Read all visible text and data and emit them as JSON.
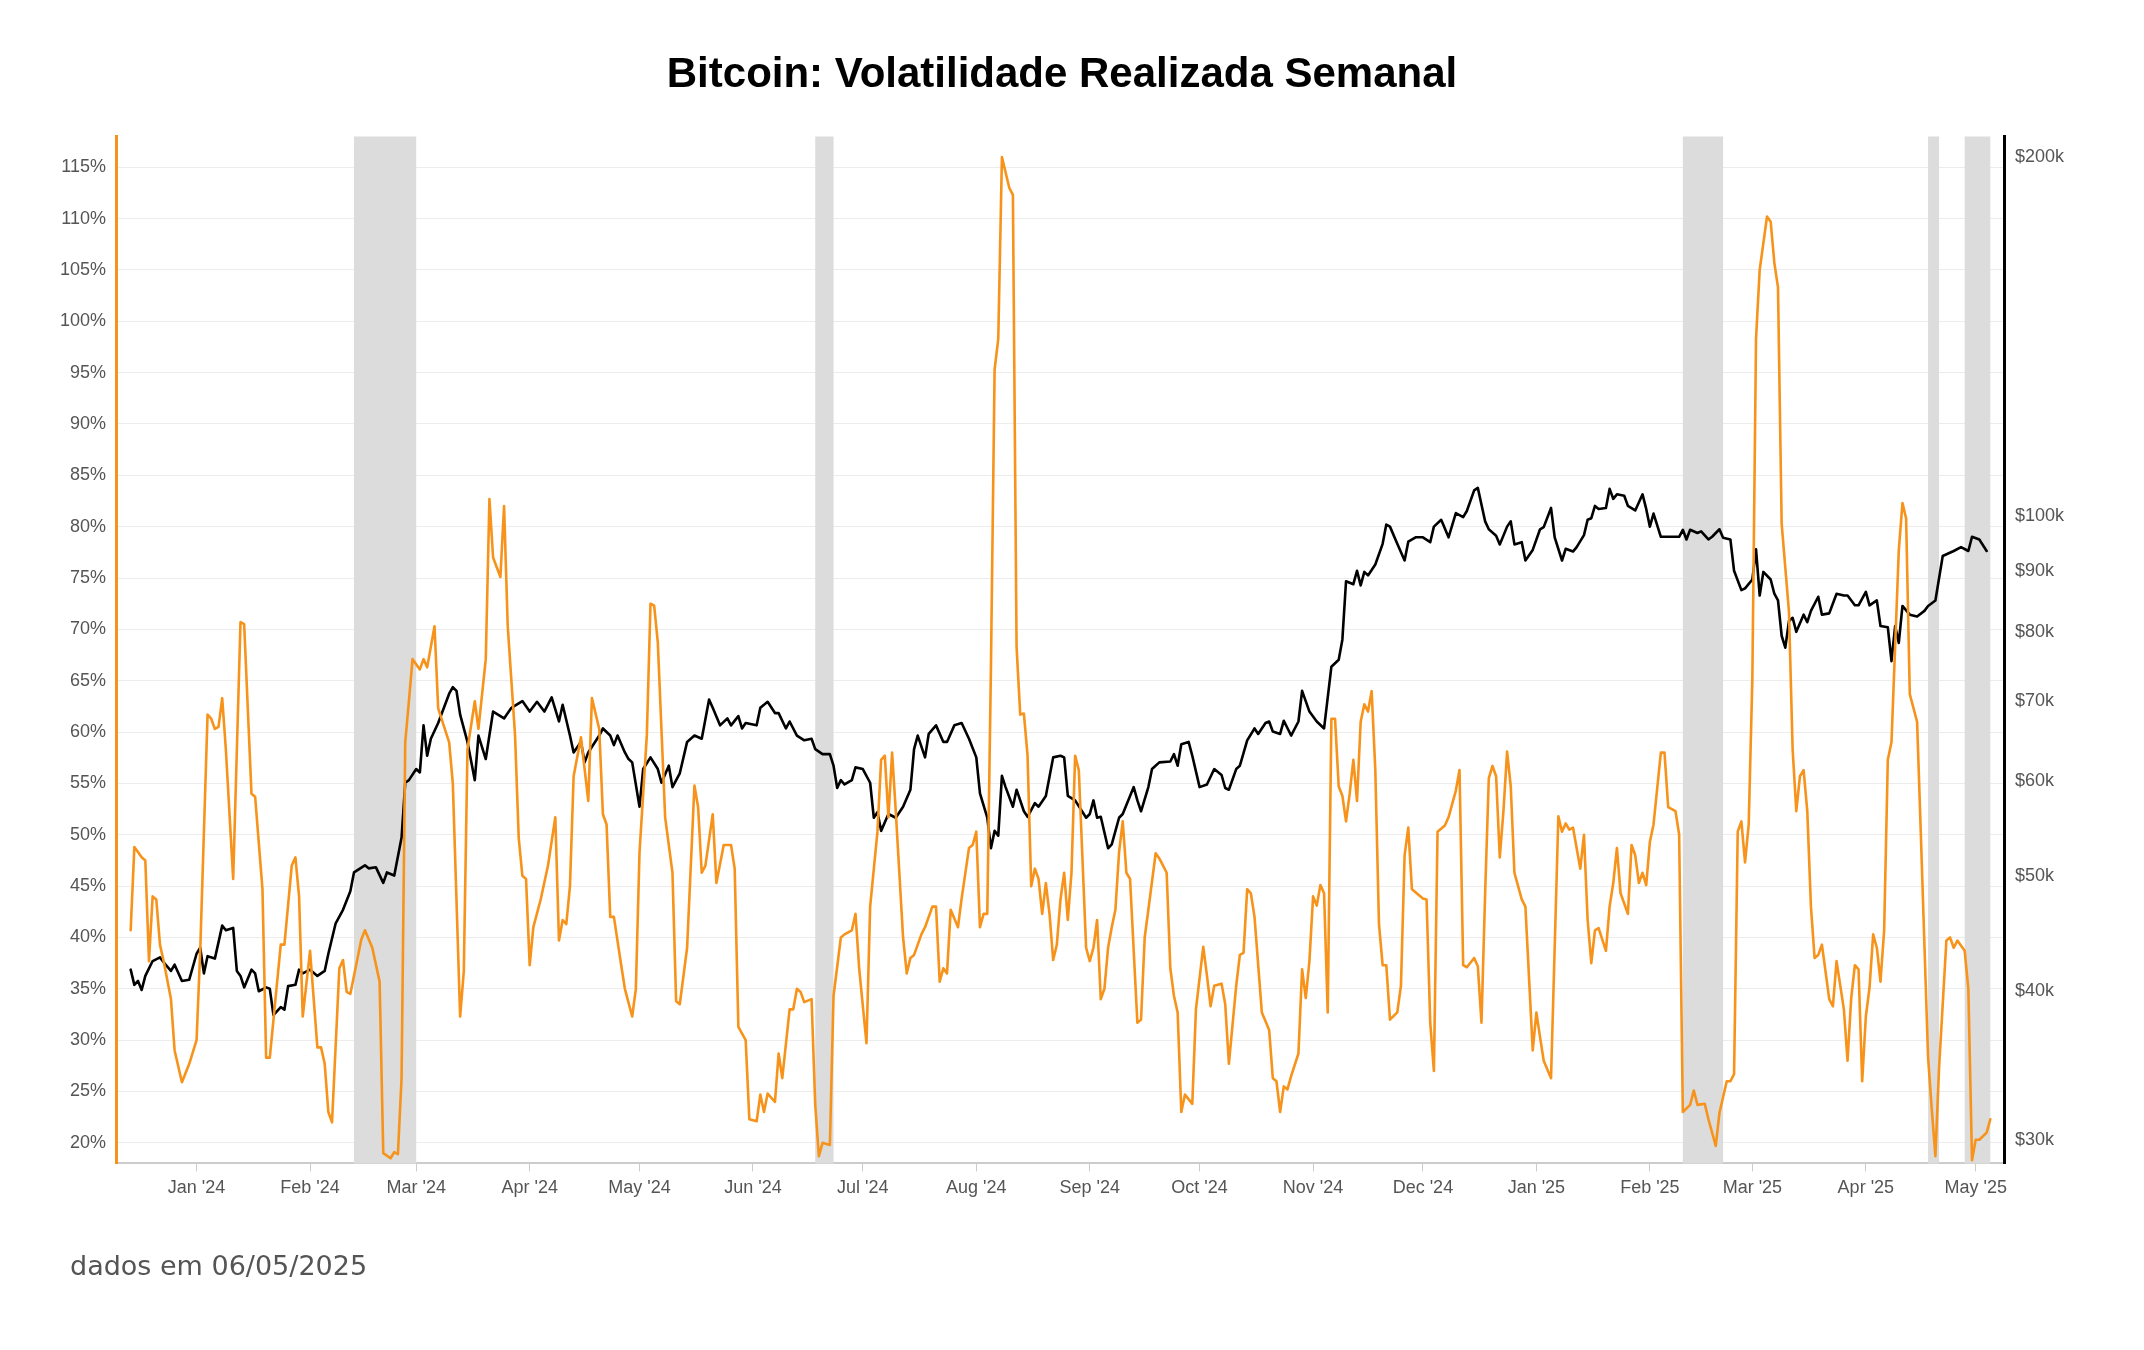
{
  "chart_data": {
    "type": "line",
    "title": "Bitcoin: Volatilidade Realizada Semanal",
    "annotations": [
      "dados em 06/05/2025"
    ],
    "xlim": [
      "2023-12-10",
      "2025-05-09"
    ],
    "xticks": [
      {
        "value": "2024-01-01",
        "label": "Jan '24"
      },
      {
        "value": "2024-02-01",
        "label": "Feb '24"
      },
      {
        "value": "2024-03-01",
        "label": "Mar '24"
      },
      {
        "value": "2024-04-01",
        "label": "Apr '24"
      },
      {
        "value": "2024-05-01",
        "label": "May '24"
      },
      {
        "value": "2024-06-01",
        "label": "Jun '24"
      },
      {
        "value": "2024-07-01",
        "label": "Jul '24"
      },
      {
        "value": "2024-08-01",
        "label": "Aug '24"
      },
      {
        "value": "2024-09-01",
        "label": "Sep '24"
      },
      {
        "value": "2024-10-01",
        "label": "Oct '24"
      },
      {
        "value": "2024-11-01",
        "label": "Nov '24"
      },
      {
        "value": "2024-12-01",
        "label": "Dec '24"
      },
      {
        "value": "2025-01-01",
        "label": "Jan '25"
      },
      {
        "value": "2025-02-01",
        "label": "Feb '25"
      },
      {
        "value": "2025-03-01",
        "label": "Mar '25"
      },
      {
        "value": "2025-04-01",
        "label": "Apr '25"
      },
      {
        "value": "2025-05-01",
        "label": "May '25"
      }
    ],
    "ylim": [
      18,
      118
    ],
    "yticks": [
      {
        "value": 20,
        "label": "20%"
      },
      {
        "value": 25,
        "label": "25%"
      },
      {
        "value": 30,
        "label": "30%"
      },
      {
        "value": 35,
        "label": "35%"
      },
      {
        "value": 40,
        "label": "40%"
      },
      {
        "value": 45,
        "label": "45%"
      },
      {
        "value": 50,
        "label": "50%"
      },
      {
        "value": 55,
        "label": "55%"
      },
      {
        "value": 60,
        "label": "60%"
      },
      {
        "value": 65,
        "label": "65%"
      },
      {
        "value": 70,
        "label": "70%"
      },
      {
        "value": 75,
        "label": "75%"
      },
      {
        "value": 80,
        "label": "80%"
      },
      {
        "value": 85,
        "label": "85%"
      },
      {
        "value": 90,
        "label": "90%"
      },
      {
        "value": 95,
        "label": "95%"
      },
      {
        "value": 100,
        "label": "100%"
      },
      {
        "value": 105,
        "label": "105%"
      },
      {
        "value": 110,
        "label": "110%"
      },
      {
        "value": 115,
        "label": "115%"
      }
    ],
    "y2lim": [
      28700,
      208000
    ],
    "y2ticks": [
      {
        "value": 30000,
        "label": "$30k"
      },
      {
        "value": 40000,
        "label": "$40k"
      },
      {
        "value": 50000,
        "label": "$50k"
      },
      {
        "value": 60000,
        "label": "$60k"
      },
      {
        "value": 70000,
        "label": "$70k"
      },
      {
        "value": 80000,
        "label": "$80k"
      },
      {
        "value": 90000,
        "label": "$90k"
      },
      {
        "value": 100000,
        "label": "$100k"
      },
      {
        "value": 200000,
        "label": "$200k"
      }
    ],
    "log": "y2",
    "grid": "y",
    "marker": "none",
    "line_style": "solid",
    "bands": [
      {
        "axis": "x",
        "from": "2024-02-13",
        "to": "2024-03-01",
        "color": "#dcdcdc"
      },
      {
        "axis": "x",
        "from": "2024-06-18",
        "to": "2024-06-23",
        "color": "#dcdcdc"
      },
      {
        "axis": "x",
        "from": "2025-02-10",
        "to": "2025-02-21",
        "color": "#dcdcdc"
      },
      {
        "axis": "x",
        "from": "2025-04-18",
        "to": "2025-04-21",
        "color": "#dcdcdc"
      },
      {
        "axis": "x",
        "from": "2025-04-28",
        "to": "2025-05-05",
        "color": "#dcdcdc"
      }
    ],
    "series": [
      {
        "color": "#f7931a",
        "x": [
          "2023-12-14",
          "2023-12-15",
          "2023-12-17",
          "2023-12-18",
          "2023-12-19",
          "2023-12-20",
          "2023-12-21",
          "2023-12-22",
          "2023-12-23",
          "2023-12-25",
          "2023-12-26",
          "2023-12-28",
          "2023-12-30",
          "2024-01-01",
          "2024-01-02",
          "2024-01-04",
          "2024-01-05",
          "2024-01-06",
          "2024-01-07",
          "2024-01-08",
          "2024-01-09",
          "2024-01-11",
          "2024-01-13",
          "2024-01-14",
          "2024-01-16",
          "2024-01-17",
          "2024-01-19",
          "2024-01-20",
          "2024-01-21",
          "2024-01-24",
          "2024-01-25",
          "2024-01-27",
          "2024-01-28",
          "2024-01-29",
          "2024-01-30",
          "2024-02-01",
          "2024-02-03",
          "2024-02-04",
          "2024-02-05",
          "2024-02-06",
          "2024-02-07",
          "2024-02-09",
          "2024-02-10",
          "2024-02-11",
          "2024-02-12",
          "2024-02-15",
          "2024-02-16",
          "2024-02-18",
          "2024-02-20",
          "2024-02-21",
          "2024-02-23",
          "2024-02-24",
          "2024-02-25",
          "2024-02-26",
          "2024-02-27",
          "2024-02-28",
          "2024-02-29",
          "2024-03-02",
          "2024-03-03",
          "2024-03-04",
          "2024-03-06",
          "2024-03-07",
          "2024-03-10",
          "2024-03-11",
          "2024-03-13",
          "2024-03-14",
          "2024-03-15",
          "2024-03-17",
          "2024-03-18",
          "2024-03-20",
          "2024-03-21",
          "2024-03-22",
          "2024-03-24",
          "2024-03-25",
          "2024-03-26",
          "2024-03-28",
          "2024-03-29",
          "2024-03-30",
          "2024-03-31",
          "2024-04-01",
          "2024-04-02",
          "2024-04-04",
          "2024-04-06",
          "2024-04-08",
          "2024-04-09",
          "2024-04-10",
          "2024-04-11",
          "2024-04-12",
          "2024-04-13",
          "2024-04-15",
          "2024-04-17",
          "2024-04-18",
          "2024-04-20",
          "2024-04-21",
          "2024-04-22",
          "2024-04-23",
          "2024-04-24",
          "2024-04-26",
          "2024-04-27",
          "2024-04-29",
          "2024-04-30",
          "2024-05-01",
          "2024-05-03",
          "2024-05-04",
          "2024-05-05",
          "2024-05-06",
          "2024-05-08",
          "2024-05-10",
          "2024-05-11",
          "2024-05-12",
          "2024-05-14",
          "2024-05-16",
          "2024-05-17",
          "2024-05-18",
          "2024-05-19",
          "2024-05-21",
          "2024-05-22",
          "2024-05-24",
          "2024-05-26",
          "2024-05-27",
          "2024-05-28",
          "2024-05-30",
          "2024-05-31",
          "2024-06-02",
          "2024-06-03",
          "2024-06-04",
          "2024-06-05",
          "2024-06-07",
          "2024-06-08",
          "2024-06-09",
          "2024-06-11",
          "2024-06-12",
          "2024-06-13",
          "2024-06-14",
          "2024-06-15",
          "2024-06-17",
          "2024-06-18",
          "2024-06-19",
          "2024-06-20",
          "2024-06-22",
          "2024-06-23",
          "2024-06-25",
          "2024-06-26",
          "2024-06-28",
          "2024-06-29",
          "2024-06-30",
          "2024-07-02",
          "2024-07-03",
          "2024-07-05",
          "2024-07-06",
          "2024-07-07",
          "2024-07-08",
          "2024-07-09",
          "2024-07-10",
          "2024-07-12",
          "2024-07-13",
          "2024-07-14",
          "2024-07-15",
          "2024-07-17",
          "2024-07-18",
          "2024-07-20",
          "2024-07-21",
          "2024-07-22",
          "2024-07-23",
          "2024-07-24",
          "2024-07-25",
          "2024-07-27",
          "2024-07-28",
          "2024-07-30",
          "2024-07-31",
          "2024-08-01",
          "2024-08-02",
          "2024-08-03",
          "2024-08-04",
          "2024-08-05",
          "2024-08-06",
          "2024-08-07",
          "2024-08-08",
          "2024-08-10",
          "2024-08-11",
          "2024-08-12",
          "2024-08-13",
          "2024-08-14",
          "2024-08-15",
          "2024-08-16",
          "2024-08-17",
          "2024-08-18",
          "2024-08-19",
          "2024-08-20",
          "2024-08-21",
          "2024-08-22",
          "2024-08-23",
          "2024-08-24",
          "2024-08-25",
          "2024-08-26",
          "2024-08-27",
          "2024-08-28",
          "2024-08-29",
          "2024-08-31",
          "2024-09-01",
          "2024-09-02",
          "2024-09-03",
          "2024-09-04",
          "2024-09-05",
          "2024-09-06",
          "2024-09-07",
          "2024-09-08",
          "2024-09-09",
          "2024-09-10",
          "2024-09-11",
          "2024-09-12",
          "2024-09-14",
          "2024-09-15",
          "2024-09-16",
          "2024-09-17",
          "2024-09-19",
          "2024-09-20",
          "2024-09-22",
          "2024-09-23",
          "2024-09-24",
          "2024-09-25",
          "2024-09-26",
          "2024-09-27",
          "2024-09-29",
          "2024-09-30",
          "2024-10-02",
          "2024-10-03",
          "2024-10-04",
          "2024-10-05",
          "2024-10-07",
          "2024-10-08",
          "2024-10-09",
          "2024-10-11",
          "2024-10-12",
          "2024-10-13",
          "2024-10-14",
          "2024-10-15",
          "2024-10-16",
          "2024-10-18",
          "2024-10-20",
          "2024-10-21",
          "2024-10-22",
          "2024-10-23",
          "2024-10-24",
          "2024-10-25",
          "2024-10-26",
          "2024-10-28",
          "2024-10-29",
          "2024-10-30",
          "2024-10-31",
          "2024-11-01",
          "2024-11-02",
          "2024-11-03",
          "2024-11-04",
          "2024-11-05",
          "2024-11-06",
          "2024-11-07",
          "2024-11-08",
          "2024-11-09",
          "2024-11-10",
          "2024-11-11",
          "2024-11-12",
          "2024-11-13",
          "2024-11-14",
          "2024-11-15",
          "2024-11-16",
          "2024-11-17",
          "2024-11-18",
          "2024-11-19",
          "2024-11-20",
          "2024-11-21",
          "2024-11-22",
          "2024-11-24",
          "2024-11-25",
          "2024-11-26",
          "2024-11-27",
          "2024-11-28",
          "2024-12-01",
          "2024-12-02",
          "2024-12-03",
          "2024-12-04",
          "2024-12-05",
          "2024-12-07",
          "2024-12-08",
          "2024-12-10",
          "2024-12-11",
          "2024-12-12",
          "2024-12-13",
          "2024-12-15",
          "2024-12-16",
          "2024-12-17",
          "2024-12-18",
          "2024-12-19",
          "2024-12-20",
          "2024-12-21",
          "2024-12-22",
          "2024-12-23",
          "2024-12-24",
          "2024-12-25",
          "2024-12-26",
          "2024-12-28",
          "2024-12-29",
          "2024-12-31",
          "2025-01-01",
          "2025-01-02",
          "2025-01-03",
          "2025-01-05",
          "2025-01-07",
          "2025-01-08",
          "2025-01-09",
          "2025-01-10",
          "2025-01-11",
          "2025-01-13",
          "2025-01-14",
          "2025-01-15",
          "2025-01-16",
          "2025-01-17",
          "2025-01-18",
          "2025-01-20",
          "2025-01-21",
          "2025-01-22",
          "2025-01-23",
          "2025-01-24",
          "2025-01-26",
          "2025-01-27",
          "2025-01-28",
          "2025-01-29",
          "2025-01-30",
          "2025-01-31",
          "2025-02-01",
          "2025-02-02",
          "2025-02-04",
          "2025-02-05",
          "2025-02-06",
          "2025-02-08",
          "2025-02-09",
          "2025-02-10",
          "2025-02-12",
          "2025-02-13",
          "2025-02-14",
          "2025-02-16",
          "2025-02-17",
          "2025-02-19",
          "2025-02-20",
          "2025-02-22",
          "2025-02-23",
          "2025-02-24",
          "2025-02-25",
          "2025-02-26",
          "2025-02-27",
          "2025-02-28",
          "2025-03-01",
          "2025-03-02",
          "2025-03-03",
          "2025-03-05",
          "2025-03-06",
          "2025-03-07",
          "2025-03-08",
          "2025-03-09",
          "2025-03-11",
          "2025-03-12",
          "2025-03-13",
          "2025-03-14",
          "2025-03-15",
          "2025-03-16",
          "2025-03-17",
          "2025-03-18",
          "2025-03-19",
          "2025-03-20",
          "2025-03-22",
          "2025-03-23",
          "2025-03-24",
          "2025-03-26",
          "2025-03-27",
          "2025-03-28",
          "2025-03-29",
          "2025-03-30",
          "2025-03-31",
          "2025-04-01",
          "2025-04-02",
          "2025-04-03",
          "2025-04-04",
          "2025-04-05",
          "2025-04-06",
          "2025-04-07",
          "2025-04-08",
          "2025-04-10",
          "2025-04-11",
          "2025-04-12",
          "2025-04-13",
          "2025-04-15",
          "2025-04-16",
          "2025-04-18",
          "2025-04-19",
          "2025-04-20",
          "2025-04-21",
          "2025-04-23",
          "2025-04-24",
          "2025-04-25",
          "2025-04-26",
          "2025-04-28",
          "2025-04-29",
          "2025-04-30",
          "2025-05-01",
          "2025-05-02",
          "2025-05-04",
          "2025-05-05"
        ],
        "values": [
          40.7,
          48.8,
          47.8,
          47.5,
          37.7,
          44,
          43.7,
          39.3,
          37.7,
          34,
          29,
          25.9,
          27.7,
          30,
          38.7,
          61.7,
          61.3,
          60.3,
          60.5,
          63.3,
          58.3,
          45.7,
          70.7,
          70.5,
          54,
          53.7,
          44.7,
          28.3,
          28.3,
          39.3,
          39.3,
          47,
          47.8,
          44,
          32.3,
          38.7,
          29.3,
          29.3,
          27.7,
          23,
          22,
          37,
          37.8,
          34.7,
          34.5,
          39.8,
          40.7,
          39,
          35.7,
          19,
          18.5,
          19.1,
          18.9,
          26.3,
          59,
          63,
          67.1,
          66.1,
          67.1,
          66.3,
          70.3,
          62.3,
          59,
          55,
          32.3,
          36.7,
          58.3,
          63,
          60.3,
          67.1,
          82.7,
          77,
          75.1,
          82,
          70.3,
          59.7,
          49.7,
          46,
          45.7,
          37.3,
          41,
          43.7,
          47,
          51.7,
          39.7,
          41.7,
          41.3,
          45,
          55.7,
          59.5,
          53.3,
          63.3,
          60.3,
          52,
          51,
          42,
          42,
          37.3,
          35,
          32.3,
          35,
          48.3,
          59.7,
          72.5,
          72.3,
          68.7,
          51.7,
          46.3,
          33.8,
          33.5,
          39,
          54.8,
          52.7,
          46.3,
          47,
          52,
          45.3,
          49,
          49,
          46.7,
          31.3,
          30,
          22.3,
          22.1,
          24.7,
          23,
          24.8,
          24,
          28.7,
          26.3,
          33,
          33,
          35,
          34.7,
          33.7,
          34,
          23.7,
          18.7,
          20,
          19.8,
          34.3,
          40,
          40.3,
          40.7,
          42.3,
          37,
          29.7,
          43,
          50.3,
          57.3,
          57.7,
          51.7,
          58,
          52.3,
          40,
          36.5,
          38,
          38.3,
          40.3,
          41,
          43,
          43,
          35.7,
          37,
          36.5,
          42.7,
          41,
          43.8,
          48.7,
          49,
          50.3,
          41,
          42.3,
          42.3,
          66.3,
          95.3,
          98.3,
          116,
          113,
          112.3,
          68.3,
          61.7,
          61.8,
          57.7,
          45,
          46.7,
          45.7,
          42.3,
          45.3,
          42.3,
          37.8,
          39.3,
          43.7,
          46.3,
          41.7,
          46.3,
          57.7,
          56.3,
          39,
          37.7,
          39,
          41.7,
          34,
          35,
          39,
          41,
          42.7,
          48.3,
          51.3,
          46.3,
          45.7,
          31.7,
          32,
          40,
          42.7,
          48.2,
          47.7,
          46.3,
          37,
          34.3,
          32.7,
          23,
          24.7,
          23.8,
          33,
          39.1,
          36.3,
          33.3,
          35.3,
          35.5,
          33.5,
          27.7,
          35.3,
          38.3,
          38.5,
          44.7,
          44.3,
          42,
          32.7,
          31,
          26.3,
          26,
          23,
          25.5,
          25.2,
          26.5,
          28.7,
          36.9,
          34.1,
          37.7,
          44,
          43.1,
          45.1,
          44.3,
          32.7,
          61.3,
          61.3,
          54.7,
          53.8,
          51.3,
          54,
          57.3,
          53.3,
          61,
          62.7,
          62,
          64,
          56.3,
          41.3,
          37.3,
          37.3,
          32,
          32.7,
          35.3,
          48,
          50.7,
          44.7,
          43.8,
          43.7,
          31.7,
          27,
          50.3,
          50.9,
          51.7,
          54.3,
          56.3,
          37.3,
          37.1,
          38,
          37.2,
          31.7,
          44.3,
          55.5,
          56.7,
          55.7,
          47.8,
          52.3,
          58.1,
          54.7,
          46.3,
          43.7,
          43,
          29,
          32.7,
          30.3,
          28,
          26.3,
          51.8,
          50.3,
          51.1,
          50.5,
          50.7,
          46.7,
          50,
          41.7,
          37.5,
          40.7,
          40.9,
          38.7,
          43,
          45.3,
          48.7,
          44.3,
          42.3,
          49,
          48,
          45.3,
          46.3,
          45.1,
          49.3,
          51,
          58,
          58,
          52.7,
          52.3,
          50,
          23,
          23.7,
          25.1,
          23.7,
          23.8,
          22.3,
          19.7,
          22.9,
          26,
          26,
          26.7,
          50.3,
          51.3,
          47.3,
          51,
          65.3,
          98.3,
          105,
          110.2,
          109.7,
          105.7,
          103.3,
          80.3,
          71.7,
          58.3,
          52.3,
          55.7,
          56.3,
          52.3,
          43,
          38,
          38.3,
          39.3,
          34,
          33.3,
          37.7,
          33,
          28,
          34.1,
          37.3,
          36.9,
          26,
          32.3,
          35.1,
          40.3,
          39,
          35.7,
          40.7,
          57.3,
          59,
          77.7,
          82.3,
          80.8,
          63.7,
          61,
          50.3,
          28.3,
          23.3,
          18.7,
          27.3,
          39.7,
          40,
          39,
          39.7,
          38.7,
          35,
          18.3,
          20.3,
          20.3,
          21,
          22.3
        ]
      },
      {
        "color": "#000000",
        "axis": "y2",
        "x": [
          "2023-12-14",
          "2023-12-15",
          "2023-12-16",
          "2023-12-17",
          "2023-12-18",
          "2023-12-20",
          "2023-12-22",
          "2023-12-23",
          "2023-12-25",
          "2023-12-26",
          "2023-12-28",
          "2023-12-30",
          "2024-01-01",
          "2024-01-02",
          "2024-01-03",
          "2024-01-04",
          "2024-01-06",
          "2024-01-08",
          "2024-01-09",
          "2024-01-11",
          "2024-01-12",
          "2024-01-13",
          "2024-01-14",
          "2024-01-16",
          "2024-01-17",
          "2024-01-18",
          "2024-01-20",
          "2024-01-21",
          "2024-01-22",
          "2024-01-24",
          "2024-01-25",
          "2024-01-26",
          "2024-01-28",
          "2024-01-29",
          "2024-01-30",
          "2024-02-01",
          "2024-02-03",
          "2024-02-05",
          "2024-02-06",
          "2024-02-08",
          "2024-02-10",
          "2024-02-12",
          "2024-02-13",
          "2024-02-16",
          "2024-02-17",
          "2024-02-19",
          "2024-02-21",
          "2024-02-22",
          "2024-02-24",
          "2024-02-26",
          "2024-02-27",
          "2024-02-28",
          "2024-03-01",
          "2024-03-02",
          "2024-03-03",
          "2024-03-04",
          "2024-03-05",
          "2024-03-07",
          "2024-03-10",
          "2024-03-11",
          "2024-03-12",
          "2024-03-13",
          "2024-03-15",
          "2024-03-17",
          "2024-03-18",
          "2024-03-20",
          "2024-03-22",
          "2024-03-25",
          "2024-03-27",
          "2024-03-30",
          "2024-04-01",
          "2024-04-03",
          "2024-04-05",
          "2024-04-07",
          "2024-04-09",
          "2024-04-10",
          "2024-04-12",
          "2024-04-13",
          "2024-04-15",
          "2024-04-16",
          "2024-04-17",
          "2024-04-20",
          "2024-04-21",
          "2024-04-23",
          "2024-04-24",
          "2024-04-25",
          "2024-04-27",
          "2024-04-28",
          "2024-04-29",
          "2024-05-01",
          "2024-05-02",
          "2024-05-04",
          "2024-05-06",
          "2024-05-07",
          "2024-05-09",
          "2024-05-10",
          "2024-05-12",
          "2024-05-14",
          "2024-05-16",
          "2024-05-18",
          "2024-05-20",
          "2024-05-21",
          "2024-05-23",
          "2024-05-25",
          "2024-05-26",
          "2024-05-28",
          "2024-05-29",
          "2024-05-30",
          "2024-06-02",
          "2024-06-03",
          "2024-06-05",
          "2024-06-07",
          "2024-06-08",
          "2024-06-10",
          "2024-06-11",
          "2024-06-13",
          "2024-06-15",
          "2024-06-17",
          "2024-06-18",
          "2024-06-20",
          "2024-06-22",
          "2024-06-23",
          "2024-06-24",
          "2024-06-25",
          "2024-06-26",
          "2024-06-28",
          "2024-06-29",
          "2024-07-01",
          "2024-07-03",
          "2024-07-04",
          "2024-07-05",
          "2024-07-06",
          "2024-07-08",
          "2024-07-10",
          "2024-07-12",
          "2024-07-14",
          "2024-07-15",
          "2024-07-16",
          "2024-07-18",
          "2024-07-19",
          "2024-07-21",
          "2024-07-23",
          "2024-07-24",
          "2024-07-26",
          "2024-07-28",
          "2024-07-30",
          "2024-08-01",
          "2024-08-02",
          "2024-08-04",
          "2024-08-05",
          "2024-08-06",
          "2024-08-07",
          "2024-08-08",
          "2024-08-09",
          "2024-08-11",
          "2024-08-12",
          "2024-08-14",
          "2024-08-15",
          "2024-08-17",
          "2024-08-18",
          "2024-08-20",
          "2024-08-22",
          "2024-08-24",
          "2024-08-25",
          "2024-08-26",
          "2024-08-28",
          "2024-08-31",
          "2024-09-01",
          "2024-09-02",
          "2024-09-03",
          "2024-09-04",
          "2024-09-06",
          "2024-09-07",
          "2024-09-09",
          "2024-09-10",
          "2024-09-13",
          "2024-09-14",
          "2024-09-15",
          "2024-09-17",
          "2024-09-18",
          "2024-09-20",
          "2024-09-23",
          "2024-09-24",
          "2024-09-25",
          "2024-09-26",
          "2024-09-28",
          "2024-09-29",
          "2024-10-01",
          "2024-10-03",
          "2024-10-05",
          "2024-10-07",
          "2024-10-08",
          "2024-10-09",
          "2024-10-11",
          "2024-10-12",
          "2024-10-14",
          "2024-10-16",
          "2024-10-17",
          "2024-10-19",
          "2024-10-20",
          "2024-10-21",
          "2024-10-23",
          "2024-10-24",
          "2024-10-26",
          "2024-10-28",
          "2024-10-29",
          "2024-10-31",
          "2024-11-02",
          "2024-11-04",
          "2024-11-06",
          "2024-11-08",
          "2024-11-09",
          "2024-11-10",
          "2024-11-12",
          "2024-11-13",
          "2024-11-14",
          "2024-11-15",
          "2024-11-16",
          "2024-11-18",
          "2024-11-20",
          "2024-11-21",
          "2024-11-22",
          "2024-11-24",
          "2024-11-26",
          "2024-11-27",
          "2024-11-29",
          "2024-12-01",
          "2024-12-03",
          "2024-12-04",
          "2024-12-06",
          "2024-12-08",
          "2024-12-10",
          "2024-12-12",
          "2024-12-13",
          "2024-12-15",
          "2024-12-16",
          "2024-12-18",
          "2024-12-19",
          "2024-12-21",
          "2024-12-22",
          "2024-12-24",
          "2024-12-25",
          "2024-12-26",
          "2024-12-28",
          "2024-12-29",
          "2024-12-31",
          "2025-01-02",
          "2025-01-03",
          "2025-01-05",
          "2025-01-06",
          "2025-01-08",
          "2025-01-09",
          "2025-01-11",
          "2025-01-12",
          "2025-01-14",
          "2025-01-15",
          "2025-01-16",
          "2025-01-17",
          "2025-01-18",
          "2025-01-20",
          "2025-01-21",
          "2025-01-22",
          "2025-01-23",
          "2025-01-25",
          "2025-01-26",
          "2025-01-28",
          "2025-01-30",
          "2025-01-31",
          "2025-02-01",
          "2025-02-02",
          "2025-02-04",
          "2025-02-06",
          "2025-02-09",
          "2025-02-10",
          "2025-02-11",
          "2025-02-12",
          "2025-02-14",
          "2025-02-15",
          "2025-02-17",
          "2025-02-18",
          "2025-02-20",
          "2025-02-21",
          "2025-02-23",
          "2025-02-24",
          "2025-02-26",
          "2025-02-27",
          "2025-03-01",
          "2025-03-02",
          "2025-03-03",
          "2025-03-04",
          "2025-03-06",
          "2025-03-07",
          "2025-03-08",
          "2025-03-09",
          "2025-03-10",
          "2025-03-11",
          "2025-03-12",
          "2025-03-13",
          "2025-03-15",
          "2025-03-16",
          "2025-03-17",
          "2025-03-19",
          "2025-03-20",
          "2025-03-22",
          "2025-03-23",
          "2025-03-24",
          "2025-03-26",
          "2025-03-27",
          "2025-03-29",
          "2025-03-30",
          "2025-04-01",
          "2025-04-02",
          "2025-04-04",
          "2025-04-05",
          "2025-04-07",
          "2025-04-08",
          "2025-04-09",
          "2025-04-10",
          "2025-04-11",
          "2025-04-13",
          "2025-04-15",
          "2025-04-17",
          "2025-04-18",
          "2025-04-20",
          "2025-04-22",
          "2025-04-25",
          "2025-04-27",
          "2025-04-29",
          "2025-04-30",
          "2025-05-02",
          "2025-05-04"
        ],
        "values": [
          41700,
          40500,
          40800,
          40100,
          41200,
          42400,
          42700,
          42300,
          41600,
          42100,
          40800,
          40900,
          43000,
          43500,
          41400,
          42800,
          42600,
          45400,
          45000,
          45200,
          41600,
          41200,
          40300,
          41700,
          41400,
          40000,
          40300,
          40200,
          38200,
          38800,
          38600,
          40400,
          40500,
          41700,
          41400,
          41700,
          41200,
          41600,
          43000,
          45600,
          46800,
          48500,
          50300,
          51000,
          50700,
          50800,
          49300,
          50300,
          50000,
          53800,
          59800,
          60100,
          61400,
          61000,
          66800,
          63000,
          65100,
          67100,
          71000,
          71900,
          71400,
          68200,
          64700,
          60100,
          65500,
          62600,
          68600,
          67700,
          69100,
          70000,
          68600,
          69900,
          68600,
          70500,
          67300,
          69500,
          65500,
          63400,
          64700,
          62200,
          63400,
          65500,
          66400,
          65500,
          64300,
          65500,
          63400,
          62600,
          62200,
          57100,
          61400,
          62800,
          61400,
          59800,
          61800,
          59300,
          60900,
          64700,
          65500,
          65100,
          70200,
          69100,
          66800,
          67700,
          66800,
          68000,
          66400,
          67100,
          66800,
          69100,
          69900,
          68400,
          68400,
          66400,
          67300,
          65500,
          64900,
          65100,
          63800,
          63200,
          63200,
          61800,
          59200,
          60100,
          59600,
          60100,
          61600,
          61400,
          59800,
          55900,
          56500,
          54500,
          56300,
          55900,
          57100,
          59000,
          63800,
          65500,
          62800,
          65700,
          66800,
          64700,
          64700,
          66800,
          67100,
          65100,
          62800,
          58600,
          55900,
          52700,
          54500,
          54000,
          60600,
          59300,
          57100,
          59000,
          56600,
          56000,
          57500,
          57100,
          58300,
          62800,
          63000,
          62800,
          58300,
          57800,
          55900,
          56300,
          57800,
          55900,
          56000,
          52700,
          53100,
          55900,
          56300,
          59300,
          57800,
          56600,
          59300,
          61400,
          62200,
          62300,
          63200,
          61800,
          64400,
          64700,
          63000,
          59300,
          59600,
          61400,
          60700,
          59200,
          59000,
          61400,
          61800,
          64900,
          66400,
          65700,
          67100,
          67300,
          66000,
          65700,
          67400,
          65500,
          67300,
          71400,
          68600,
          67300,
          66400,
          74800,
          75800,
          78800,
          88200,
          87700,
          90000,
          87500,
          89800,
          89200,
          91100,
          94800,
          98400,
          98000,
          94800,
          91800,
          95200,
          96000,
          96000,
          95100,
          98000,
          99300,
          96000,
          100600,
          99800,
          101000,
          105100,
          105600,
          99000,
          97500,
          96300,
          94700,
          98000,
          99000,
          94700,
          95100,
          91800,
          93700,
          97500,
          97900,
          101600,
          96000,
          91800,
          93900,
          93400,
          94200,
          96400,
          99300,
          99600,
          102000,
          101400,
          101600,
          105400,
          103400,
          104300,
          104000,
          102000,
          101100,
          104300,
          101400,
          98000,
          100500,
          96100,
          96100,
          96100,
          97400,
          95600,
          97400,
          96800,
          97100,
          95600,
          96100,
          97500,
          95900,
          95600,
          90000,
          86700,
          87000,
          88500,
          93800,
          85800,
          89800,
          88500,
          86100,
          85000,
          79400,
          77600,
          81700,
          82200,
          80000,
          82700,
          81500,
          83300,
          85600,
          82700,
          82900,
          84500,
          86100,
          85800,
          85800,
          84200,
          84200,
          86400,
          84200,
          85000,
          80900,
          80700,
          75600,
          80900,
          78300,
          84100,
          82700,
          82400,
          83300,
          84100,
          85000,
          92600,
          93500,
          94200,
          93500,
          96100,
          95600,
          93500
        ]
      }
    ]
  }
}
